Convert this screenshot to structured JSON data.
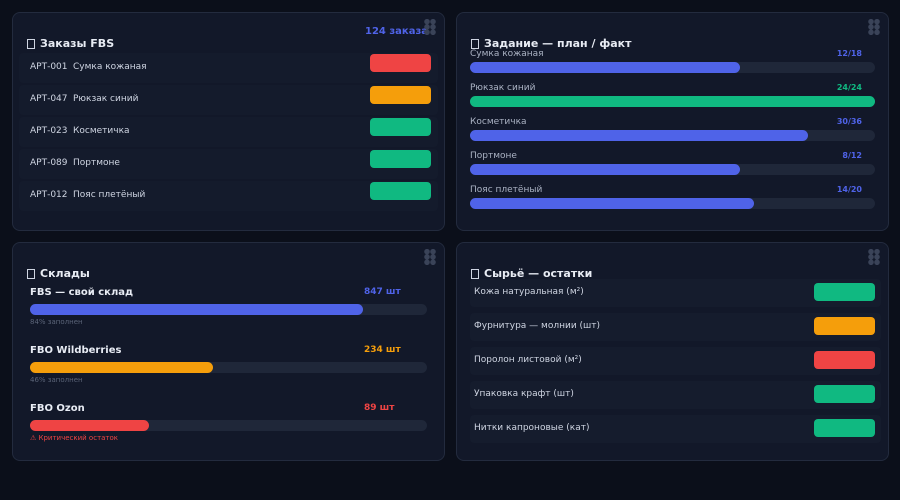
{
  "orders": {
    "title": "Заказы FBS",
    "badge": "124 заказа",
    "rows": [
      {
        "sku": "АРТ-001",
        "name": "Сумка кожаная",
        "color": "#ef4444"
      },
      {
        "sku": "АРТ-047",
        "name": "Рюкзак синий",
        "color": "#f59e0b"
      },
      {
        "sku": "АРТ-023",
        "name": "Косметичка",
        "color": "#10b981"
      },
      {
        "sku": "АРТ-089",
        "name": "Портмоне",
        "color": "#10b981"
      },
      {
        "sku": "АРТ-012",
        "name": "Пояс плетёный",
        "color": "#10b981"
      }
    ]
  },
  "plan": {
    "title": "Задание — план / факт",
    "items": [
      {
        "name": "Сумка кожаная",
        "fact": 12,
        "plan": 18,
        "label": "12/18",
        "color": "#4f63e8"
      },
      {
        "name": "Рюкзак синий",
        "fact": 24,
        "plan": 24,
        "label": "24/24",
        "color": "#10b981"
      },
      {
        "name": "Косметичка",
        "fact": 30,
        "plan": 36,
        "label": "30/36",
        "color": "#4f63e8"
      },
      {
        "name": "Портмоне",
        "fact": 8,
        "plan": 12,
        "label": "8/12",
        "color": "#4f63e8"
      },
      {
        "name": "Пояс плетёный",
        "fact": 14,
        "plan": 20,
        "label": "14/20",
        "color": "#4f63e8"
      }
    ]
  },
  "warehouses": {
    "title": "Склады",
    "items": [
      {
        "name": "FBS — свой склад",
        "amount": "847 шт",
        "fill": 84,
        "note": "84% заполнен",
        "color": "#4f63e8",
        "note_color": "#5b6478"
      },
      {
        "name": "FBO Wildberries",
        "amount": "234 шт",
        "fill": 46,
        "note": "46% заполнен",
        "color": "#f59e0b",
        "note_color": "#5b6478"
      },
      {
        "name": "FBO Ozon",
        "amount": "89 шт",
        "fill": 30,
        "note": "⚠ Критический остаток",
        "color": "#ef4444",
        "note_color": "#ef4444"
      }
    ]
  },
  "materials": {
    "title": "Сырьё — остатки",
    "rows": [
      {
        "name": "Кожа натуральная (м²)",
        "color": "#10b981"
      },
      {
        "name": "Фурнитура — молнии (шт)",
        "color": "#f59e0b"
      },
      {
        "name": "Поролон листовой (м²)",
        "color": "#ef4444"
      },
      {
        "name": "Упаковка крафт (шт)",
        "color": "#10b981"
      },
      {
        "name": "Нитки капроновые (кат)",
        "color": "#10b981"
      }
    ]
  }
}
